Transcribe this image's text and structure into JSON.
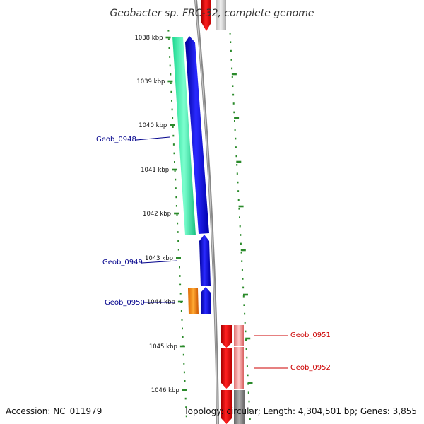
{
  "title": "Geobacter sp. FRC-32, complete genome",
  "accession": "Accession: NC_011979",
  "topology": "Topology: circular; Length: 4,304,501 bp; Genes: 3,855",
  "ticks": [
    "1038 kbp",
    "1039 kbp",
    "1040 kbp",
    "1041 kbp",
    "1042 kbp",
    "1043 kbp",
    "1044 kbp",
    "1045 kbp",
    "1046 kbp"
  ],
  "gene_labels": [
    "Geob_0948",
    "Geob_0949",
    "Geob_0950",
    "Geob_0951",
    "Geob_0952"
  ],
  "colors": {
    "blue": "#0000ff",
    "teal": "#22e8a0",
    "orange": "#ff8800",
    "red": "#ee0000",
    "pink": "#f08080",
    "gray": "#888888",
    "dot_green": "#2a8a2a",
    "label_blue": "#00008b",
    "label_red": "#cc0000"
  }
}
